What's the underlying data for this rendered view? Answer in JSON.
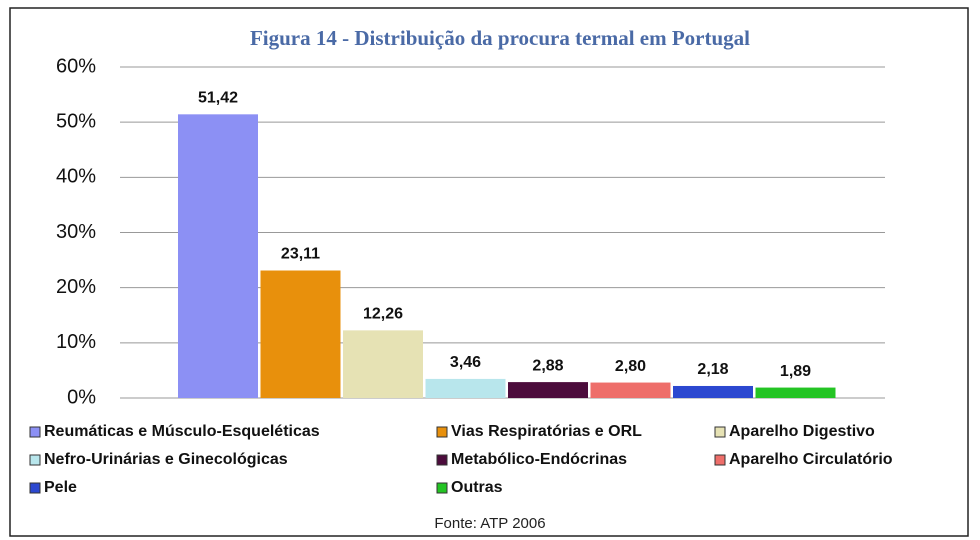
{
  "chart_data": {
    "type": "bar",
    "title": "Figura 14 - Distribuição da procura termal em Portugal",
    "categories": [
      "Reumáticas e Músculo-Esqueléticas",
      "Vias Respiratórias e ORL",
      "Aparelho Digestivo",
      "Nefro-Urinárias e Ginecológicas",
      "Metabólico-Endócrinas",
      "Aparelho Circulatório",
      "Pele",
      "Outras"
    ],
    "values": [
      51.42,
      23.11,
      12.26,
      3.46,
      2.88,
      2.8,
      2.18,
      1.89
    ],
    "value_labels": [
      "51,42",
      "23,11",
      "12,26",
      "3,46",
      "2,88",
      "2,80",
      "2,18",
      "1,89"
    ],
    "colors": [
      "#8c90f4",
      "#e8900c",
      "#e6e2b4",
      "#b8e6ec",
      "#4c0c3c",
      "#ee6e6a",
      "#2c48d0",
      "#24c424"
    ],
    "ylim": [
      0,
      60
    ],
    "yticks": [
      {
        "value": 0,
        "label": "0%"
      },
      {
        "value": 10,
        "label": "10%"
      },
      {
        "value": 20,
        "label": "20%"
      },
      {
        "value": 30,
        "label": "30%"
      },
      {
        "value": 40,
        "label": "40%"
      },
      {
        "value": 50,
        "label": "50%"
      },
      {
        "value": 60,
        "label": "60%"
      }
    ],
    "grid": true,
    "source": "Fonte: ATP 2006"
  }
}
